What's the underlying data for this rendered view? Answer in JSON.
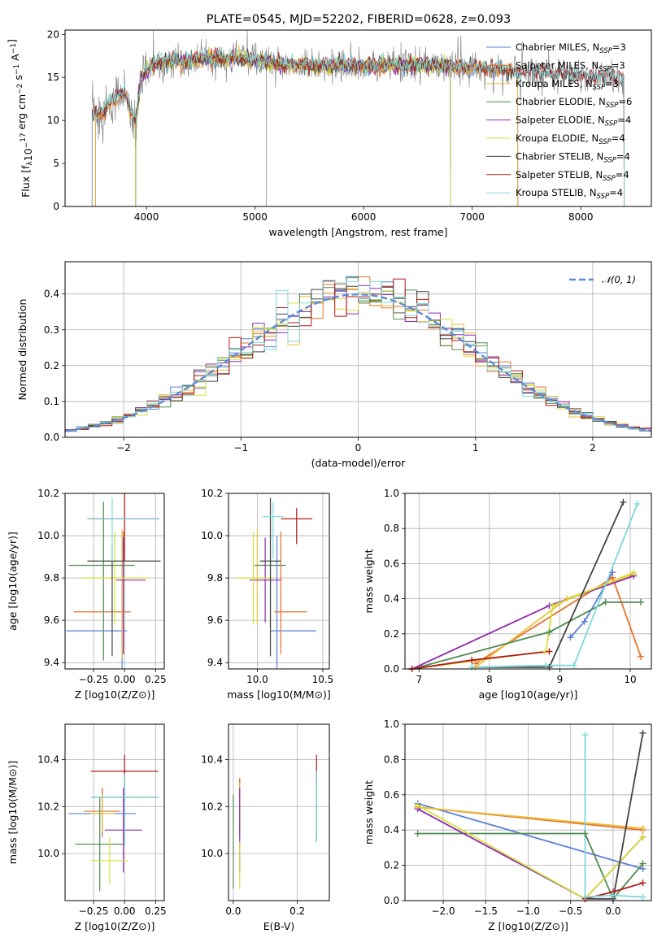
{
  "figure_title": "PLATE=0545, MJD=52202, FIBERID=0628, z=0.093",
  "colors": {
    "Chabrier MILES": "#5b7fd6",
    "Salpeter MILES": "#e8722a",
    "Kroupa MILES": "#e8c038",
    "Chabrier ELODIE": "#4f8a4f",
    "Salpeter ELODIE": "#8e2bb0",
    "Kroupa ELODIE": "#d6e03a",
    "Chabrier STELIB": "#444444",
    "Salpeter STELIB": "#b01818",
    "Kroupa STELIB": "#7fd8dc",
    "normal": "#5b8bd6",
    "grid": "#b0b0b0"
  },
  "chart_data": [
    {
      "id": "spectrum",
      "type": "line",
      "title": "PLATE=0545, MJD=52202, FIBERID=0628, z=0.093",
      "xlabel": "wavelength [Angstrom, rest frame]",
      "ylabel": "Flux [fλ10⁻¹⁷ erg cm⁻² s⁻¹ A⁻¹]",
      "xlim": [
        3250,
        8650
      ],
      "ylim": [
        0,
        20.5
      ],
      "xticks": [
        4000,
        5000,
        6000,
        7000,
        8000
      ],
      "yticks": [
        0,
        5,
        10,
        15,
        20
      ],
      "grid": false,
      "legend_position": "top-right",
      "continuum": {
        "x": [
          3500,
          3600,
          3700,
          3800,
          3850,
          3900,
          3950,
          4000,
          4100,
          4300,
          4500,
          4800,
          5000,
          5200,
          5500,
          6000,
          6500,
          7000,
          7500,
          8000,
          8400
        ],
        "y": [
          10.6,
          11.0,
          12.6,
          13.2,
          11.0,
          10.0,
          14.5,
          15.8,
          16.8,
          16.8,
          17.1,
          17.3,
          17.0,
          16.6,
          16.4,
          16.3,
          16.5,
          16.1,
          15.6,
          15.2,
          14.9
        ]
      },
      "series": [
        {
          "name": "Chabrier MILES, NSSP=3",
          "sub": "SSP",
          "label_main": "Chabrier MILES, N",
          "label_tail": "=3",
          "color_key": "Chabrier MILES",
          "x_range": [
            3530,
            7420
          ]
        },
        {
          "name": "Salpeter MILES, NSSP=3",
          "sub": "SSP",
          "label_main": "Salpeter MILES, N",
          "label_tail": "=3",
          "color_key": "Salpeter MILES",
          "x_range": [
            3530,
            7420
          ]
        },
        {
          "name": "Kroupa MILES, NSSP=3",
          "sub": "SSP",
          "label_main": "Kroupa MILES, N",
          "label_tail": "=3",
          "color_key": "Kroupa MILES",
          "x_range": [
            3530,
            7420
          ]
        },
        {
          "name": "Chabrier ELODIE, NSSP=6",
          "sub": "SSP",
          "label_main": "Chabrier ELODIE, N",
          "label_tail": "=6",
          "color_key": "Chabrier ELODIE",
          "x_range": [
            3900,
            6800
          ]
        },
        {
          "name": "Salpeter ELODIE, NSSP=4",
          "sub": "SSP",
          "label_main": "Salpeter ELODIE, N",
          "label_tail": "=4",
          "color_key": "Salpeter ELODIE",
          "x_range": [
            3900,
            6800
          ]
        },
        {
          "name": "Kroupa ELODIE, NSSP=4",
          "sub": "SSP",
          "label_main": "Kroupa ELODIE, N",
          "label_tail": "=4",
          "color_key": "Kroupa ELODIE",
          "x_range": [
            3900,
            6800
          ]
        },
        {
          "name": "Chabrier STELIB, NSSP=4",
          "sub": "SSP",
          "label_main": "Chabrier STELIB, N",
          "label_tail": "=4",
          "color_key": "Chabrier STELIB",
          "x_range": [
            3500,
            8400
          ]
        },
        {
          "name": "Salpeter STELIB, NSSP=4",
          "sub": "SSP",
          "label_main": "Salpeter STELIB, N",
          "label_tail": "=4",
          "color_key": "Salpeter STELIB",
          "x_range": [
            3500,
            8400
          ]
        },
        {
          "name": "Kroupa STELIB, NSSP=4",
          "sub": "SSP",
          "label_main": "Kroupa STELIB, N",
          "label_tail": "=4",
          "color_key": "Kroupa STELIB",
          "x_range": [
            3500,
            8400
          ]
        }
      ]
    },
    {
      "id": "residuals",
      "type": "line",
      "xlabel": "(data-model)/error",
      "ylabel": "Normed distribution",
      "xlim": [
        -2.5,
        2.5
      ],
      "ylim": [
        0,
        0.49
      ],
      "xticks": [
        -2,
        -1,
        0,
        1,
        2
      ],
      "yticks": [
        0.0,
        0.1,
        0.2,
        0.3,
        0.4
      ],
      "grid": true,
      "legend_position": "top-right",
      "normal_label": "𝒩(0, 1)",
      "bin_width": 0.1
    },
    {
      "id": "age_vs_Z",
      "type": "scatter",
      "xlabel": "Z [log10(Z/Z⊙)]",
      "ylabel": "age  [log10(age/yr)]",
      "xlim": [
        -0.48,
        0.32
      ],
      "ylim": [
        9.37,
        10.2
      ],
      "xticks": [
        -0.25,
        0.0,
        0.25
      ],
      "yticks": [
        9.4,
        9.6,
        9.8,
        10.0,
        10.2
      ],
      "grid": true,
      "points": [
        {
          "c": "Chabrier MILES",
          "x": -0.02,
          "y": 9.55,
          "xerr": [
            0.45,
            0.04
          ],
          "yerr": [
            0.2,
            0.45
          ]
        },
        {
          "c": "Salpeter MILES",
          "x": -0.01,
          "y": 9.64,
          "xerr": [
            0.4,
            0.06
          ],
          "yerr": [
            0.2,
            0.38
          ]
        },
        {
          "c": "Kroupa MILES",
          "x": -0.02,
          "y": 9.8,
          "xerr": [
            0.05,
            0.05
          ],
          "yerr": [
            0.38,
            0.23
          ]
        },
        {
          "c": "Chabrier ELODIE",
          "x": -0.17,
          "y": 9.86,
          "xerr": [
            0.28,
            0.25
          ],
          "yerr": [
            0.45,
            0.3
          ]
        },
        {
          "c": "Salpeter ELODIE",
          "x": -0.01,
          "y": 9.79,
          "xerr": [
            0.06,
            0.18
          ],
          "yerr": [
            0.35,
            0.2
          ]
        },
        {
          "c": "Kroupa ELODIE",
          "x": -0.08,
          "y": 9.8,
          "xerr": [
            0.27,
            0.27
          ],
          "yerr": [
            0.22,
            0.22
          ]
        },
        {
          "c": "Chabrier STELIB",
          "x": -0.1,
          "y": 9.88,
          "xerr": [
            0.2,
            0.39
          ],
          "yerr": [
            0.45,
            0.07
          ]
        },
        {
          "c": "Salpeter STELIB",
          "x": 0.0,
          "y": 10.08,
          "xerr": [
            0.3,
            0.28
          ],
          "yerr": [
            0.2,
            0.12
          ]
        },
        {
          "c": "Kroupa STELIB",
          "x": -0.1,
          "y": 10.08,
          "xerr": [
            0.2,
            0.38
          ],
          "yerr": [
            0.2,
            0.1
          ]
        }
      ]
    },
    {
      "id": "age_vs_mass",
      "type": "scatter",
      "xlabel": "mass [log10(M/M⊙)]",
      "ylabel": "",
      "xlim": [
        9.78,
        10.55
      ],
      "ylim": [
        9.37,
        10.2
      ],
      "xticks": [
        10.0,
        10.5
      ],
      "yticks": [
        9.4,
        9.6,
        9.8,
        10.0,
        10.2
      ],
      "grid": true,
      "points": [
        {
          "c": "Chabrier MILES",
          "x": 10.15,
          "y": 9.55,
          "xerr": [
            0.05,
            0.3
          ],
          "yerr": [
            0.2,
            0.45
          ]
        },
        {
          "c": "Salpeter MILES",
          "x": 10.18,
          "y": 9.64,
          "xerr": [
            0.05,
            0.2
          ],
          "yerr": [
            0.2,
            0.38
          ]
        },
        {
          "c": "Kroupa MILES",
          "x": 10.0,
          "y": 9.8,
          "xerr": [
            0.12,
            0.12
          ],
          "yerr": [
            0.22,
            0.23
          ]
        },
        {
          "c": "Chabrier ELODIE",
          "x": 10.1,
          "y": 9.86,
          "xerr": [
            0.12,
            0.12
          ],
          "yerr": [
            0.3,
            0.3
          ]
        },
        {
          "c": "Salpeter ELODIE",
          "x": 10.06,
          "y": 9.79,
          "xerr": [
            0.12,
            0.12
          ],
          "yerr": [
            0.2,
            0.2
          ]
        },
        {
          "c": "Kroupa ELODIE",
          "x": 9.97,
          "y": 9.8,
          "xerr": [
            0.14,
            0.14
          ],
          "yerr": [
            0.22,
            0.22
          ]
        },
        {
          "c": "Chabrier STELIB",
          "x": 10.1,
          "y": 9.88,
          "xerr": [
            0.08,
            0.08
          ],
          "yerr": [
            0.45,
            0.3
          ]
        },
        {
          "c": "Salpeter STELIB",
          "x": 10.3,
          "y": 10.08,
          "xerr": [
            0.12,
            0.12
          ],
          "yerr": [
            0.12,
            0.05
          ]
        },
        {
          "c": "Kroupa STELIB",
          "x": 10.12,
          "y": 10.09,
          "xerr": [
            0.08,
            0.08
          ],
          "yerr": [
            0.2,
            0.07
          ]
        }
      ]
    },
    {
      "id": "mass_weight_vs_age",
      "type": "line",
      "xlabel": "age  [log10(age/yr)]",
      "ylabel": "mass weight",
      "xlim": [
        6.8,
        10.3
      ],
      "ylim": [
        0,
        1.0
      ],
      "xticks": [
        7,
        8,
        9,
        10
      ],
      "yticks": [
        0.0,
        0.2,
        0.4,
        0.6,
        0.8,
        1.0
      ],
      "grid": true,
      "series": [
        {
          "c": "Chabrier MILES",
          "x": [
            9.15,
            9.35,
            9.75
          ],
          "y": [
            0.18,
            0.27,
            0.55
          ]
        },
        {
          "c": "Salpeter MILES",
          "x": [
            7.8,
            9.75,
            10.15
          ],
          "y": [
            0.03,
            0.52,
            0.07
          ]
        },
        {
          "c": "Kroupa MILES",
          "x": [
            7.8,
            9.1,
            10.05
          ],
          "y": [
            0.01,
            0.4,
            0.54
          ]
        },
        {
          "c": "Chabrier ELODIE",
          "x": [
            6.9,
            8.85,
            9.65,
            10.15
          ],
          "y": [
            0.0,
            0.21,
            0.38,
            0.38
          ]
        },
        {
          "c": "Salpeter ELODIE",
          "x": [
            6.9,
            8.85,
            10.05
          ],
          "y": [
            0.0,
            0.36,
            0.53
          ]
        },
        {
          "c": "Kroupa ELODIE",
          "x": [
            6.9,
            8.8,
            8.9,
            10.05
          ],
          "y": [
            0.0,
            0.1,
            0.36,
            0.55
          ]
        },
        {
          "c": "Chabrier STELIB",
          "x": [
            7.75,
            8.85,
            9.9
          ],
          "y": [
            0.01,
            0.01,
            0.95
          ]
        },
        {
          "c": "Salpeter STELIB",
          "x": [
            6.9,
            7.75,
            8.85
          ],
          "y": [
            0.0,
            0.05,
            0.1
          ]
        },
        {
          "c": "Kroupa STELIB",
          "x": [
            7.75,
            8.8,
            9.2,
            10.1
          ],
          "y": [
            0.01,
            0.02,
            0.02,
            0.94
          ]
        }
      ]
    },
    {
      "id": "mass_vs_Z",
      "type": "scatter",
      "xlabel": "Z [log10(Z/Z⊙)]",
      "ylabel": "mass [log10(M/M⊙)]",
      "xlim": [
        -0.48,
        0.32
      ],
      "ylim": [
        9.8,
        10.55
      ],
      "xticks": [
        -0.25,
        0.0,
        0.25
      ],
      "yticks": [
        10.0,
        10.2,
        10.4
      ],
      "grid": true,
      "points": [
        {
          "c": "Chabrier MILES",
          "x": -0.18,
          "y": 10.17,
          "xerr": [
            0.27,
            0.27
          ],
          "yerr": [
            0.1,
            0.1
          ]
        },
        {
          "c": "Salpeter MILES",
          "x": -0.18,
          "y": 10.18,
          "xerr": [
            0.15,
            0.15
          ],
          "yerr": [
            0.1,
            0.1
          ]
        },
        {
          "c": "Kroupa MILES",
          "x": -0.18,
          "y": 10.17,
          "xerr": [
            0.1,
            0.1
          ],
          "yerr": [
            0.08,
            0.08
          ]
        },
        {
          "c": "Chabrier ELODIE",
          "x": -0.2,
          "y": 10.04,
          "xerr": [
            0.2,
            0.2
          ],
          "yerr": [
            0.2,
            0.2
          ]
        },
        {
          "c": "Salpeter ELODIE",
          "x": -0.01,
          "y": 10.1,
          "xerr": [
            0.15,
            0.15
          ],
          "yerr": [
            0.18,
            0.18
          ]
        },
        {
          "c": "Kroupa ELODIE",
          "x": -0.12,
          "y": 9.97,
          "xerr": [
            0.15,
            0.15
          ],
          "yerr": [
            0.1,
            0.1
          ]
        },
        {
          "c": "Chabrier STELIB",
          "x": 0.0,
          "y": 10.24,
          "xerr": [
            0.27,
            0.27
          ],
          "yerr": [
            0.2,
            0.12
          ]
        },
        {
          "c": "Salpeter STELIB",
          "x": 0.0,
          "y": 10.35,
          "xerr": [
            0.27,
            0.27
          ],
          "yerr": [
            0.05,
            0.07
          ]
        },
        {
          "c": "Kroupa STELIB",
          "x": 0.0,
          "y": 10.24,
          "xerr": [
            0.27,
            0.27
          ],
          "yerr": [
            0.2,
            0.1
          ]
        }
      ]
    },
    {
      "id": "mass_vs_ebv",
      "type": "scatter",
      "xlabel": "E(B-V)",
      "ylabel": "",
      "xlim": [
        -0.015,
        0.3
      ],
      "ylim": [
        9.8,
        10.55
      ],
      "xticks": [
        0.0,
        0.2
      ],
      "yticks": [
        10.0,
        10.2,
        10.4
      ],
      "grid": true,
      "points": [
        {
          "c": "Chabrier MILES",
          "x": 0.02,
          "y": 10.2,
          "xerr": [
            0,
            0
          ],
          "yerr": [
            0.12,
            0.12
          ]
        },
        {
          "c": "Salpeter MILES",
          "x": 0.02,
          "y": 10.2,
          "xerr": [
            0,
            0
          ],
          "yerr": [
            0.12,
            0.12
          ]
        },
        {
          "c": "Kroupa MILES",
          "x": 0.02,
          "y": 10.2,
          "xerr": [
            0,
            0
          ],
          "yerr": [
            0.1,
            0.1
          ]
        },
        {
          "c": "Chabrier ELODIE",
          "x": 0.0,
          "y": 10.05,
          "xerr": [
            0,
            0
          ],
          "yerr": [
            0.2,
            0.2
          ]
        },
        {
          "c": "Salpeter ELODIE",
          "x": 0.02,
          "y": 10.1,
          "xerr": [
            0,
            0
          ],
          "yerr": [
            0.18,
            0.18
          ]
        },
        {
          "c": "Kroupa ELODIE",
          "x": 0.02,
          "y": 9.95,
          "xerr": [
            0,
            0
          ],
          "yerr": [
            0.1,
            0.1
          ]
        },
        {
          "c": "Chabrier STELIB",
          "x": 0.26,
          "y": 10.25,
          "xerr": [
            0,
            0
          ],
          "yerr": [
            0.2,
            0.1
          ]
        },
        {
          "c": "Salpeter STELIB",
          "x": 0.26,
          "y": 10.35,
          "xerr": [
            0,
            0
          ],
          "yerr": [
            0.05,
            0.07
          ]
        },
        {
          "c": "Kroupa STELIB",
          "x": 0.26,
          "y": 10.25,
          "xerr": [
            0,
            0
          ],
          "yerr": [
            0.2,
            0.1
          ]
        }
      ]
    },
    {
      "id": "mass_weight_vs_Z",
      "type": "line",
      "xlabel": "Z [log10(Z/Z⊙)]",
      "ylabel": "mass weight",
      "xlim": [
        -2.45,
        0.45
      ],
      "ylim": [
        0,
        1.0
      ],
      "xticks": [
        -2.0,
        -1.5,
        -1.0,
        -0.5,
        0.0
      ],
      "yticks": [
        0.0,
        0.2,
        0.4,
        0.6,
        0.8,
        1.0
      ],
      "grid": true,
      "series": [
        {
          "c": "Chabrier MILES",
          "x": [
            -2.3,
            0.35
          ],
          "y": [
            0.55,
            0.18
          ]
        },
        {
          "c": "Salpeter MILES",
          "x": [
            -2.3,
            0.35
          ],
          "y": [
            0.53,
            0.4
          ]
        },
        {
          "c": "Kroupa MILES",
          "x": [
            -2.3,
            0.35
          ],
          "y": [
            0.53,
            0.41
          ]
        },
        {
          "c": "Chabrier ELODIE",
          "x": [
            -2.3,
            -0.33,
            0.0,
            0.35
          ],
          "y": [
            0.38,
            0.38,
            0.01,
            0.21
          ]
        },
        {
          "c": "Salpeter ELODIE",
          "x": [
            -2.3,
            -0.33,
            0.35
          ],
          "y": [
            0.52,
            0.01,
            0.36
          ]
        },
        {
          "c": "Kroupa ELODIE",
          "x": [
            -2.3,
            -0.33,
            0.35
          ],
          "y": [
            0.54,
            0.01,
            0.36
          ]
        },
        {
          "c": "Chabrier STELIB",
          "x": [
            -0.33,
            0.0,
            0.35
          ],
          "y": [
            0.01,
            0.01,
            0.95
          ]
        },
        {
          "c": "Salpeter STELIB",
          "x": [
            -0.33,
            0.0,
            0.35
          ],
          "y": [
            0.01,
            0.05,
            0.1
          ]
        },
        {
          "c": "Kroupa STELIB",
          "x": [
            -0.33,
            -0.33,
            0.0,
            0.35
          ],
          "y": [
            0.94,
            0.02,
            0.03,
            0.02
          ]
        }
      ]
    }
  ]
}
